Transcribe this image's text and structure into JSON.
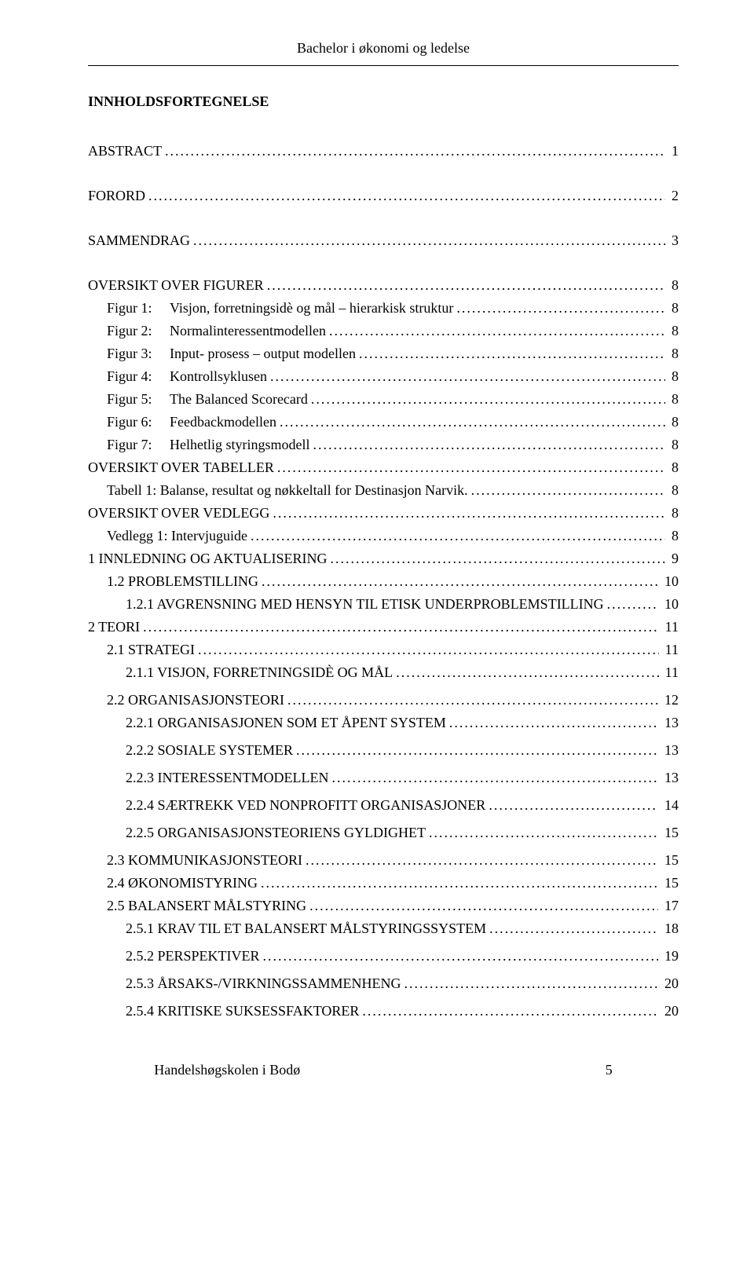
{
  "header": {
    "running_title": "Bachelor i økonomi og ledelse"
  },
  "title": "INNHOLDSFORTEGNELSE",
  "toc": [
    {
      "label": "ABSTRACT",
      "page": "1",
      "indent": 0,
      "gap_after": "lg"
    },
    {
      "label": "FORORD",
      "page": "2",
      "indent": 0,
      "gap_after": "lg"
    },
    {
      "label": "SAMMENDRAG",
      "page": "3",
      "indent": 0,
      "gap_after": "lg"
    },
    {
      "label": "OVERSIKT OVER FIGURER",
      "page": "8",
      "indent": 0
    },
    {
      "prefix": "Figur 1:",
      "label": "Visjon, forretningsidè og mål – hierarkisk struktur",
      "page": "8",
      "indent": 1
    },
    {
      "prefix": "Figur 2:",
      "label": "Normalinteressentmodellen",
      "page": "8",
      "indent": 1
    },
    {
      "prefix": "Figur 3:",
      "label": "Input- prosess – output modellen",
      "page": "8",
      "indent": 1
    },
    {
      "prefix": "Figur 4:",
      "label": "Kontrollsyklusen",
      "page": "8",
      "indent": 1
    },
    {
      "prefix": "Figur 5:",
      "label": "The Balanced Scorecard",
      "page": "8",
      "indent": 1
    },
    {
      "prefix": "Figur 6:",
      "label": "Feedbackmodellen",
      "page": "8",
      "indent": 1
    },
    {
      "prefix": "Figur 7:",
      "label": "Helhetlig styringsmodell",
      "page": "8",
      "indent": 1
    },
    {
      "label": "OVERSIKT OVER TABELLER",
      "page": "8",
      "indent": 0
    },
    {
      "label": "Tabell 1: Balanse, resultat og nøkkeltall for Destinasjon Narvik.",
      "page": "8",
      "indent": 1
    },
    {
      "label": "OVERSIKT OVER VEDLEGG",
      "page": "8",
      "indent": 0
    },
    {
      "label": "Vedlegg 1: Intervjuguide",
      "page": "8",
      "indent": 1
    },
    {
      "label": "1 INNLEDNING OG AKTUALISERING",
      "page": "9",
      "indent": 0
    },
    {
      "label": "1.2 PROBLEMSTILLING",
      "page": "10",
      "indent": 1
    },
    {
      "label": "1.2.1 AVGRENSNING MED HENSYN TIL ETISK UNDERPROBLEMSTILLING",
      "page": "10",
      "indent": 2
    },
    {
      "label": "2 TEORI",
      "page": "11",
      "indent": 0
    },
    {
      "label": "2.1 STRATEGI",
      "page": "11",
      "indent": 1
    },
    {
      "label": "2.1.1 VISJON, FORRETNINGSIDÈ OG MÅL",
      "page": "11",
      "indent": 2,
      "gap_after": "sm"
    },
    {
      "label": "2.2 ORGANISASJONSTEORI",
      "page": "12",
      "indent": 1
    },
    {
      "label": "2.2.1 ORGANISASJONEN SOM ET ÅPENT SYSTEM",
      "page": "13",
      "indent": 2,
      "gap_after": "sm"
    },
    {
      "label": "2.2.2 SOSIALE SYSTEMER",
      "page": "13",
      "indent": 2,
      "gap_after": "sm"
    },
    {
      "label": "2.2.3 INTERESSENTMODELLEN",
      "page": "13",
      "indent": 2,
      "gap_after": "sm"
    },
    {
      "label": "2.2.4 SÆRTREKK VED NONPROFITT ORGANISASJONER",
      "page": "14",
      "indent": 2,
      "gap_after": "sm"
    },
    {
      "label": "2.2.5 ORGANISASJONSTEORIENS GYLDIGHET",
      "page": "15",
      "indent": 2,
      "gap_after": "sm"
    },
    {
      "label": "2.3 KOMMUNIKASJONSTEORI",
      "page": "15",
      "indent": 1
    },
    {
      "label": "2.4 ØKONOMISTYRING",
      "page": "15",
      "indent": 1
    },
    {
      "label": "2.5 BALANSERT MÅLSTYRING",
      "page": "17",
      "indent": 1
    },
    {
      "label": "2.5.1 KRAV TIL ET BALANSERT MÅLSTYRINGSSYSTEM",
      "page": "18",
      "indent": 2,
      "gap_after": "sm"
    },
    {
      "label": "2.5.2 PERSPEKTIVER",
      "page": "19",
      "indent": 2,
      "gap_after": "sm"
    },
    {
      "label": "2.5.3 ÅRSAKS-/VIRKNINGSSAMMENHENG",
      "page": "20",
      "indent": 2,
      "gap_after": "sm"
    },
    {
      "label": "2.5.4 KRITISKE SUKSESSFAKTORER",
      "page": "20",
      "indent": 2
    }
  ],
  "footer": {
    "text": "Handelshøgskolen i Bodø",
    "page_number": "5"
  }
}
